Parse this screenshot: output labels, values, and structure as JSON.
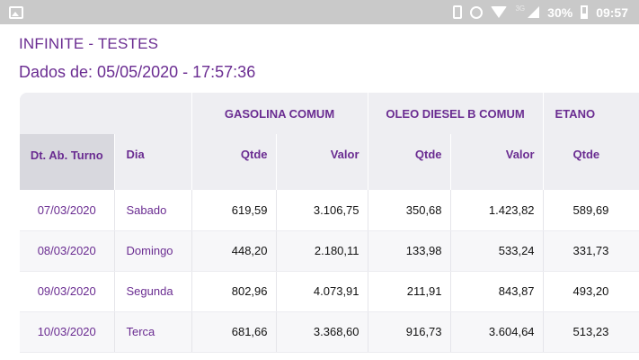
{
  "status_bar": {
    "battery": "30%",
    "time": "09:57",
    "network": "3G"
  },
  "header": {
    "title": "INFINITE - TESTES",
    "subtitle": "Dados de: 05/05/2020 - 17:57:36"
  },
  "table": {
    "groups": [
      "GASOLINA COMUM",
      "OLEO DIESEL B COMUM",
      "ETANO"
    ],
    "columns": {
      "date": "Dt. Ab. Turno",
      "day": "Dia",
      "qtde": "Qtde",
      "valor": "Valor"
    },
    "rows": [
      {
        "date": "07/03/2020",
        "day": "Sabado",
        "gas_qtde": "619,59",
        "gas_valor": "3.106,75",
        "diesel_qtde": "350,68",
        "diesel_valor": "1.423,82",
        "etanol_qtde": "589,69"
      },
      {
        "date": "08/03/2020",
        "day": "Domingo",
        "gas_qtde": "448,20",
        "gas_valor": "2.180,11",
        "diesel_qtde": "133,98",
        "diesel_valor": "533,24",
        "etanol_qtde": "331,73"
      },
      {
        "date": "09/03/2020",
        "day": "Segunda",
        "gas_qtde": "802,96",
        "gas_valor": "4.073,91",
        "diesel_qtde": "211,91",
        "diesel_valor": "843,87",
        "etanol_qtde": "493,20"
      },
      {
        "date": "10/03/2020",
        "day": "Terca",
        "gas_qtde": "681,66",
        "gas_valor": "3.368,60",
        "diesel_qtde": "916,73",
        "diesel_valor": "3.604,64",
        "etanol_qtde": "513,23"
      }
    ]
  }
}
